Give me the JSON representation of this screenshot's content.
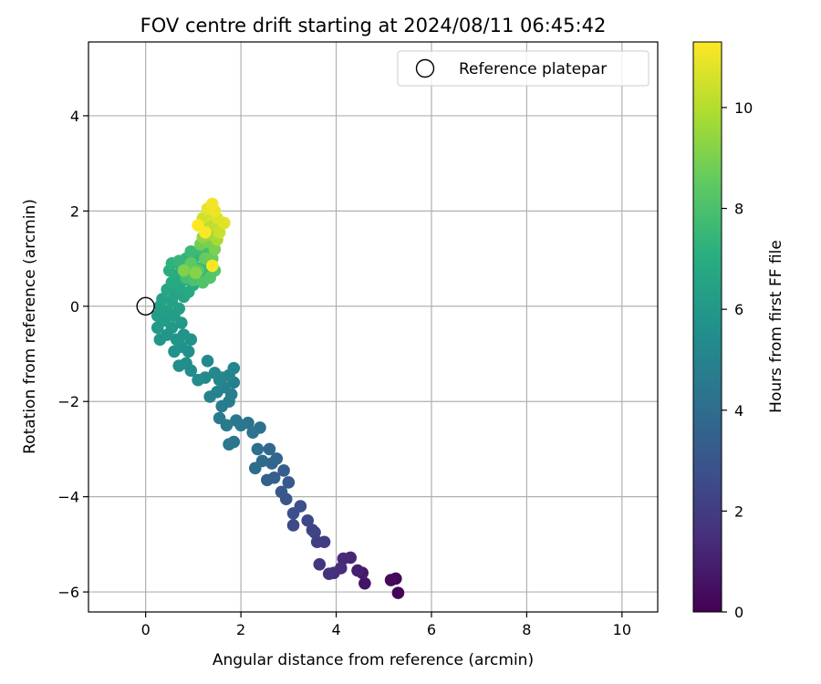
{
  "chart_data": {
    "type": "scatter",
    "title": "FOV centre drift starting at 2024/08/11 06:45:42",
    "xlabel": "Angular distance from reference (arcmin)",
    "ylabel": "Rotation from reference (arcmin)",
    "xlim": [
      -1.2,
      10.75
    ],
    "ylim": [
      -6.42,
      5.55
    ],
    "xticks": [
      0,
      2,
      4,
      6,
      8,
      10
    ],
    "yticks": [
      -6,
      -4,
      -2,
      0,
      2,
      4
    ],
    "xtick_labels": [
      "0",
      "2",
      "4",
      "6",
      "8",
      "10"
    ],
    "ytick_labels": [
      "−6",
      "−4",
      "−2",
      "0",
      "2",
      "4"
    ],
    "grid": true,
    "legend": {
      "position": "top-right",
      "entries": [
        "Reference platepar"
      ]
    },
    "reference_point": {
      "x": 0,
      "y": 0
    },
    "colorbar": {
      "label": "Hours from first FF file",
      "colormap": "viridis",
      "range": [
        0,
        11.3
      ],
      "ticks": [
        0,
        2,
        4,
        6,
        8,
        10
      ],
      "tick_labels": [
        "0",
        "2",
        "4",
        "6",
        "8",
        "10"
      ]
    },
    "series": [
      {
        "values": [
          {
            "x": 5.3,
            "y": -6.02,
            "t": 0.1
          },
          {
            "x": 5.25,
            "y": -5.72,
            "t": 0.2
          },
          {
            "x": 5.15,
            "y": -5.75,
            "t": 0.3
          },
          {
            "x": 4.6,
            "y": -5.82,
            "t": 0.6
          },
          {
            "x": 4.55,
            "y": -5.6,
            "t": 0.8
          },
          {
            "x": 4.45,
            "y": -5.55,
            "t": 1.0
          },
          {
            "x": 4.3,
            "y": -5.28,
            "t": 1.2
          },
          {
            "x": 4.15,
            "y": -5.3,
            "t": 1.3
          },
          {
            "x": 4.1,
            "y": -5.5,
            "t": 1.4
          },
          {
            "x": 3.95,
            "y": -5.6,
            "t": 1.5
          },
          {
            "x": 3.85,
            "y": -5.62,
            "t": 1.6
          },
          {
            "x": 3.65,
            "y": -5.42,
            "t": 1.8
          },
          {
            "x": 3.75,
            "y": -4.95,
            "t": 2.0
          },
          {
            "x": 3.6,
            "y": -4.95,
            "t": 2.1
          },
          {
            "x": 3.55,
            "y": -4.75,
            "t": 2.2
          },
          {
            "x": 3.5,
            "y": -4.7,
            "t": 2.3
          },
          {
            "x": 3.4,
            "y": -4.5,
            "t": 2.4
          },
          {
            "x": 3.1,
            "y": -4.6,
            "t": 2.5
          },
          {
            "x": 3.25,
            "y": -4.2,
            "t": 2.7
          },
          {
            "x": 3.1,
            "y": -4.35,
            "t": 2.8
          },
          {
            "x": 2.95,
            "y": -4.05,
            "t": 3.0
          },
          {
            "x": 2.85,
            "y": -3.9,
            "t": 3.1
          },
          {
            "x": 3.0,
            "y": -3.7,
            "t": 3.2
          },
          {
            "x": 2.9,
            "y": -3.45,
            "t": 3.3
          },
          {
            "x": 2.7,
            "y": -3.6,
            "t": 3.4
          },
          {
            "x": 2.55,
            "y": -3.65,
            "t": 3.5
          },
          {
            "x": 2.65,
            "y": -3.3,
            "t": 3.6
          },
          {
            "x": 2.75,
            "y": -3.2,
            "t": 3.7
          },
          {
            "x": 2.6,
            "y": -3.0,
            "t": 3.8
          },
          {
            "x": 2.45,
            "y": -3.25,
            "t": 3.9
          },
          {
            "x": 2.3,
            "y": -3.4,
            "t": 4.0
          },
          {
            "x": 2.35,
            "y": -3.0,
            "t": 4.1
          },
          {
            "x": 2.4,
            "y": -2.55,
            "t": 4.2
          },
          {
            "x": 2.25,
            "y": -2.65,
            "t": 4.3
          },
          {
            "x": 2.15,
            "y": -2.45,
            "t": 4.35
          },
          {
            "x": 1.85,
            "y": -2.85,
            "t": 4.4
          },
          {
            "x": 1.75,
            "y": -2.9,
            "t": 4.45
          },
          {
            "x": 2.0,
            "y": -2.5,
            "t": 4.5
          },
          {
            "x": 1.9,
            "y": -2.4,
            "t": 4.55
          },
          {
            "x": 1.7,
            "y": -2.5,
            "t": 4.6
          },
          {
            "x": 1.55,
            "y": -2.35,
            "t": 4.65
          },
          {
            "x": 1.6,
            "y": -2.1,
            "t": 4.7
          },
          {
            "x": 1.75,
            "y": -2.0,
            "t": 4.75
          },
          {
            "x": 1.8,
            "y": -1.85,
            "t": 4.8
          },
          {
            "x": 1.85,
            "y": -1.6,
            "t": 4.85
          },
          {
            "x": 1.65,
            "y": -1.7,
            "t": 4.9
          },
          {
            "x": 1.5,
            "y": -1.8,
            "t": 4.95
          },
          {
            "x": 1.35,
            "y": -1.9,
            "t": 5.0
          },
          {
            "x": 1.55,
            "y": -1.55,
            "t": 5.05
          },
          {
            "x": 1.75,
            "y": -1.45,
            "t": 5.1
          },
          {
            "x": 1.85,
            "y": -1.3,
            "t": 5.15
          },
          {
            "x": 1.6,
            "y": -1.5,
            "t": 5.2
          },
          {
            "x": 1.45,
            "y": -1.4,
            "t": 5.25
          },
          {
            "x": 1.25,
            "y": -1.5,
            "t": 5.3
          },
          {
            "x": 1.3,
            "y": -1.15,
            "t": 5.35
          },
          {
            "x": 1.1,
            "y": -1.55,
            "t": 5.4
          },
          {
            "x": 0.95,
            "y": -1.35,
            "t": 5.45
          },
          {
            "x": 0.85,
            "y": -1.2,
            "t": 5.5
          },
          {
            "x": 0.7,
            "y": -1.25,
            "t": 5.55
          },
          {
            "x": 0.9,
            "y": -0.95,
            "t": 5.6
          },
          {
            "x": 0.75,
            "y": -0.85,
            "t": 5.65
          },
          {
            "x": 0.6,
            "y": -0.95,
            "t": 5.7
          },
          {
            "x": 0.95,
            "y": -0.7,
            "t": 5.75
          },
          {
            "x": 0.8,
            "y": -0.6,
            "t": 5.8
          },
          {
            "x": 0.65,
            "y": -0.7,
            "t": 5.85
          },
          {
            "x": 0.45,
            "y": -0.6,
            "t": 5.9
          },
          {
            "x": 0.3,
            "y": -0.7,
            "t": 5.95
          },
          {
            "x": 0.55,
            "y": -0.45,
            "t": 6.0
          },
          {
            "x": 0.75,
            "y": -0.35,
            "t": 6.05
          },
          {
            "x": 0.25,
            "y": -0.45,
            "t": 6.1
          },
          {
            "x": 0.4,
            "y": -0.3,
            "t": 6.15
          },
          {
            "x": 0.6,
            "y": -0.2,
            "t": 6.2
          },
          {
            "x": 0.25,
            "y": -0.2,
            "t": 6.25
          },
          {
            "x": 0.45,
            "y": -0.1,
            "t": 6.3
          },
          {
            "x": 0.7,
            "y": -0.05,
            "t": 6.35
          },
          {
            "x": 0.3,
            "y": 0.0,
            "t": 6.4
          },
          {
            "x": 0.55,
            "y": 0.1,
            "t": 6.45
          },
          {
            "x": 0.35,
            "y": 0.15,
            "t": 6.5
          },
          {
            "x": 0.6,
            "y": 0.25,
            "t": 6.55
          },
          {
            "x": 0.8,
            "y": 0.2,
            "t": 6.6
          },
          {
            "x": 0.45,
            "y": 0.35,
            "t": 6.65
          },
          {
            "x": 0.7,
            "y": 0.4,
            "t": 6.7
          },
          {
            "x": 0.9,
            "y": 0.3,
            "t": 6.75
          },
          {
            "x": 0.55,
            "y": 0.5,
            "t": 6.8
          },
          {
            "x": 0.8,
            "y": 0.55,
            "t": 6.85
          },
          {
            "x": 1.0,
            "y": 0.45,
            "t": 6.9
          },
          {
            "x": 0.65,
            "y": 0.65,
            "t": 6.95
          },
          {
            "x": 0.5,
            "y": 0.75,
            "t": 7.0
          },
          {
            "x": 0.9,
            "y": 0.7,
            "t": 7.05
          },
          {
            "x": 1.1,
            "y": 0.6,
            "t": 7.1
          },
          {
            "x": 0.75,
            "y": 0.85,
            "t": 7.15
          },
          {
            "x": 0.55,
            "y": 0.9,
            "t": 7.2
          },
          {
            "x": 1.0,
            "y": 0.85,
            "t": 7.25
          },
          {
            "x": 1.2,
            "y": 0.7,
            "t": 7.3
          },
          {
            "x": 0.85,
            "y": 1.0,
            "t": 7.35
          },
          {
            "x": 1.05,
            "y": 1.05,
            "t": 7.4
          },
          {
            "x": 0.7,
            "y": 0.95,
            "t": 7.45
          },
          {
            "x": 1.25,
            "y": 0.9,
            "t": 7.5
          },
          {
            "x": 1.35,
            "y": 0.8,
            "t": 7.55
          },
          {
            "x": 0.95,
            "y": 1.15,
            "t": 7.6
          },
          {
            "x": 1.15,
            "y": 1.2,
            "t": 7.7
          },
          {
            "x": 1.3,
            "y": 1.1,
            "t": 7.8
          },
          {
            "x": 0.85,
            "y": 0.6,
            "t": 7.9
          },
          {
            "x": 1.0,
            "y": 0.55,
            "t": 8.0
          },
          {
            "x": 1.2,
            "y": 0.5,
            "t": 8.1
          },
          {
            "x": 1.35,
            "y": 0.6,
            "t": 8.2
          },
          {
            "x": 1.45,
            "y": 0.75,
            "t": 8.3
          },
          {
            "x": 1.1,
            "y": 0.75,
            "t": 8.4
          },
          {
            "x": 0.95,
            "y": 0.9,
            "t": 8.5
          },
          {
            "x": 1.25,
            "y": 1.0,
            "t": 8.6
          },
          {
            "x": 1.4,
            "y": 1.0,
            "t": 8.7
          },
          {
            "x": 1.15,
            "y": 1.3,
            "t": 8.8
          },
          {
            "x": 1.3,
            "y": 1.35,
            "t": 8.9
          },
          {
            "x": 1.45,
            "y": 1.2,
            "t": 9.0
          },
          {
            "x": 0.8,
            "y": 0.75,
            "t": 9.1
          },
          {
            "x": 1.05,
            "y": 0.7,
            "t": 9.2
          },
          {
            "x": 1.2,
            "y": 1.45,
            "t": 9.4
          },
          {
            "x": 1.35,
            "y": 1.5,
            "t": 9.6
          },
          {
            "x": 1.5,
            "y": 1.4,
            "t": 9.8
          },
          {
            "x": 1.25,
            "y": 1.65,
            "t": 10.0
          },
          {
            "x": 1.4,
            "y": 1.7,
            "t": 10.2
          },
          {
            "x": 1.55,
            "y": 1.55,
            "t": 10.4
          },
          {
            "x": 1.2,
            "y": 1.85,
            "t": 10.5
          },
          {
            "x": 1.35,
            "y": 1.95,
            "t": 10.6
          },
          {
            "x": 1.5,
            "y": 1.85,
            "t": 10.7
          },
          {
            "x": 1.65,
            "y": 1.75,
            "t": 10.8
          },
          {
            "x": 1.3,
            "y": 2.05,
            "t": 10.9
          },
          {
            "x": 1.45,
            "y": 2.0,
            "t": 11.0
          },
          {
            "x": 1.4,
            "y": 2.15,
            "t": 11.1
          },
          {
            "x": 1.4,
            "y": 0.85,
            "t": 11.2
          },
          {
            "x": 1.25,
            "y": 1.55,
            "t": 11.25
          },
          {
            "x": 1.1,
            "y": 1.7,
            "t": 11.3
          }
        ]
      }
    ]
  }
}
